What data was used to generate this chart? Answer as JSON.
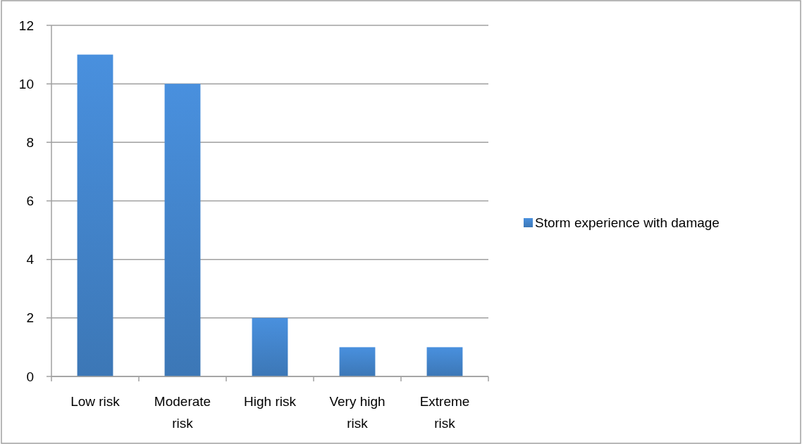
{
  "chart_data": {
    "type": "bar",
    "categories": [
      "Low risk",
      "Moderate risk",
      "High risk",
      "Very high risk",
      "Extreme risk"
    ],
    "series": [
      {
        "name": "Storm experience with damage",
        "color": "#4384cb",
        "values": [
          11,
          10,
          2,
          1,
          1
        ]
      }
    ],
    "ylim": [
      0,
      12
    ],
    "yticks": [
      0,
      2,
      4,
      6,
      8,
      10,
      12
    ],
    "grid": "y",
    "legend": "right"
  }
}
